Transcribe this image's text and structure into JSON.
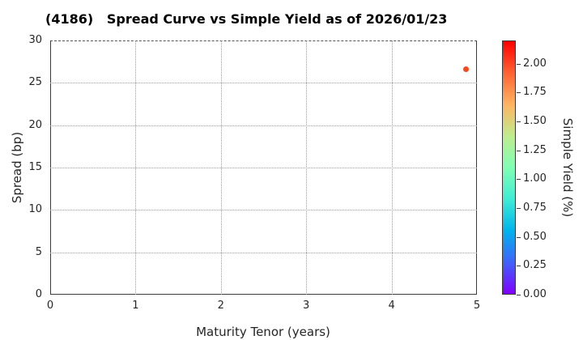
{
  "chart_data": {
    "type": "scatter",
    "title": "(4186)   Spread Curve vs Simple Yield as of 2026/01/23",
    "xlabel": "Maturity Tenor (years)",
    "ylabel": "Spread (bp)",
    "xlim": [
      0,
      5
    ],
    "ylim": [
      0,
      30
    ],
    "xticks": [
      0,
      1,
      2,
      3,
      4,
      5
    ],
    "yticks": [
      0,
      5,
      10,
      15,
      20,
      25,
      30
    ],
    "grid": "dotted, on x ticks 1-4 and y ticks 5-25",
    "points": [
      {
        "x": 4.87,
        "y": 26.6,
        "simple_yield": 1.98,
        "color": "#f24a1f"
      }
    ],
    "colorbar": {
      "label": "Simple Yield (%)",
      "range": [
        0.0,
        2.2
      ],
      "tick_values": [
        0.0,
        0.25,
        0.5,
        0.75,
        1.0,
        1.25,
        1.5,
        1.75,
        2.0
      ],
      "tick_format_decimals": 2,
      "colormap": "rainbow",
      "colormap_stops_bottom_to_top": [
        "rgb(128,0,255)",
        "rgb(64,98,250)",
        "rgb(0,180,236)",
        "rgb(64,236,212)",
        "rgb(128,255,180)",
        "rgb(191,236,142)",
        "rgb(255,180,97)",
        "rgb(255,98,50)",
        "rgb(255,0,0)"
      ],
      "position": "right"
    },
    "legend": "none",
    "background": "#ffffff"
  }
}
